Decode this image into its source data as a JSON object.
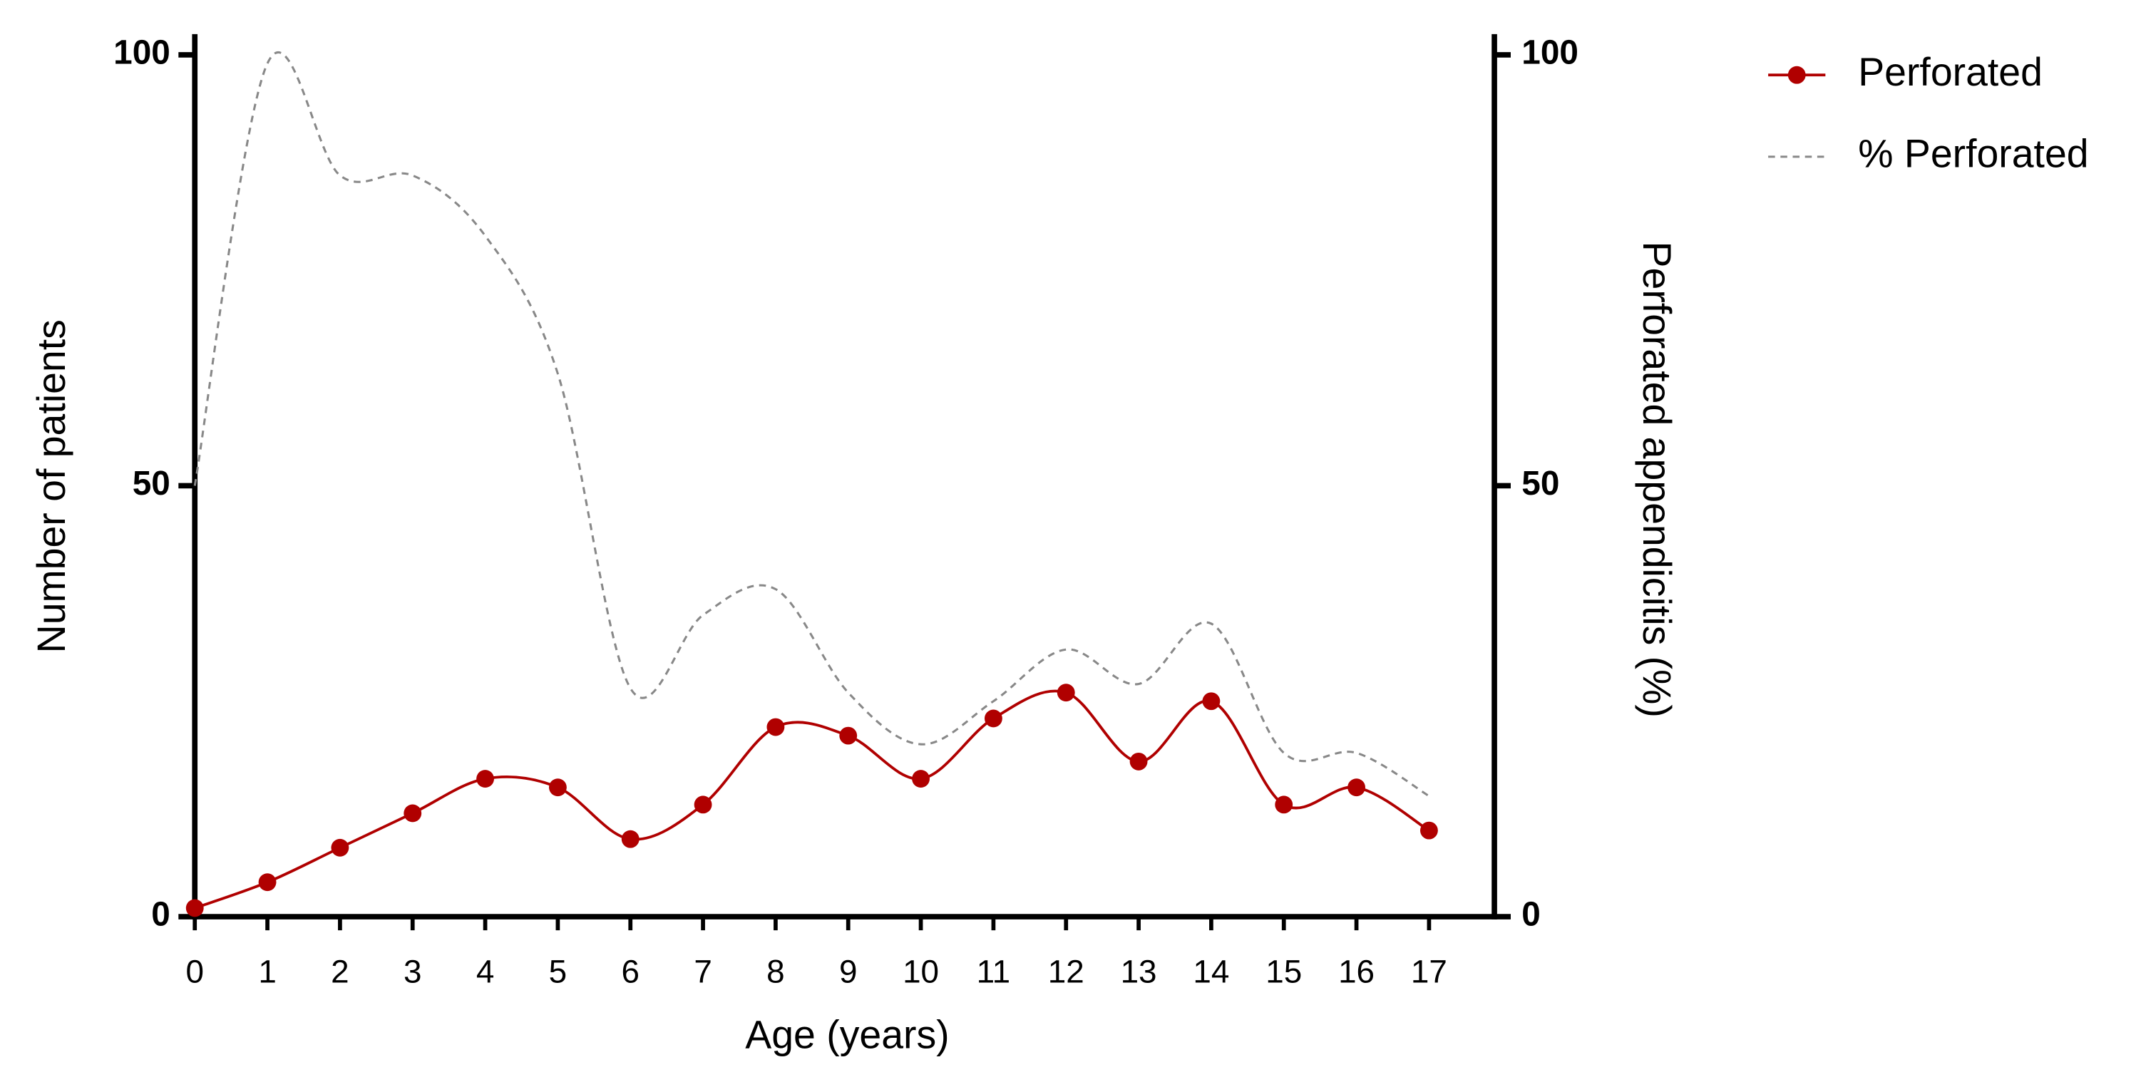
{
  "chart_data": {
    "type": "line",
    "xlabel": "Age (years)",
    "ylabel": "Number of patients",
    "y2label": "Perforated appendicitis (%)",
    "x": [
      0,
      1,
      2,
      3,
      4,
      5,
      6,
      7,
      8,
      9,
      10,
      11,
      12,
      13,
      14,
      15,
      16,
      17
    ],
    "xlim": [
      0,
      17.9
    ],
    "xticks": [
      0,
      1,
      2,
      3,
      4,
      5,
      6,
      7,
      8,
      9,
      10,
      11,
      12,
      13,
      14,
      15,
      16,
      17
    ],
    "ylim": [
      0,
      102.4
    ],
    "yticks": [
      0,
      50,
      100
    ],
    "y2lim": [
      0,
      102.4
    ],
    "y2ticks": [
      0,
      50,
      100
    ],
    "legend": "right",
    "series": [
      {
        "name": "Perforated",
        "color": "#b00000",
        "markers": true,
        "dashed": false,
        "values": [
          1,
          4,
          8,
          12,
          16,
          15,
          9,
          13,
          22,
          21,
          16,
          23,
          26,
          18,
          25,
          13,
          15,
          10
        ]
      },
      {
        "name": "% Perforated",
        "color": "#888888",
        "markers": false,
        "dashed": true,
        "axis": "y2",
        "values": [
          50,
          99,
          86,
          86,
          79,
          63,
          26.5,
          35,
          38,
          26,
          20,
          25,
          31,
          27,
          34,
          19,
          19,
          14
        ]
      }
    ]
  }
}
